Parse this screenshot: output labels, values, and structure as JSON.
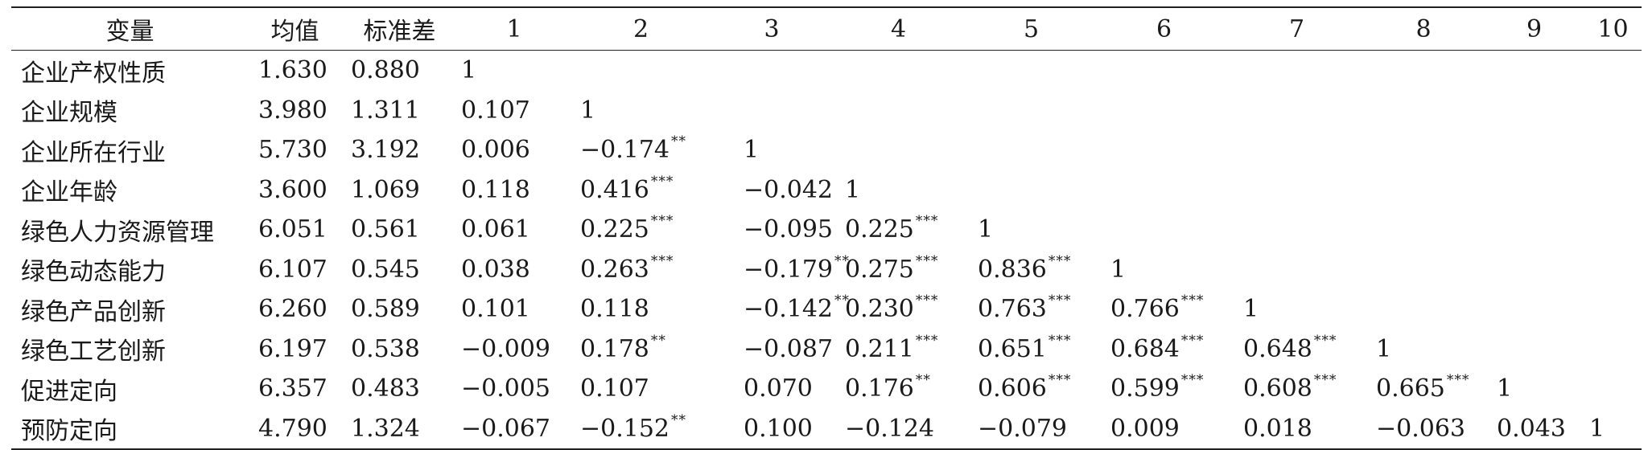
{
  "table": {
    "headers": [
      "变量",
      "均值",
      "标准差",
      "1",
      "2",
      "3",
      "4",
      "5",
      "6",
      "7",
      "8",
      "9",
      "10"
    ],
    "rows": [
      {
        "name": "企业产权性质",
        "mean": "1.630",
        "sd": "0.880",
        "cells": [
          {
            "v": "1",
            "s": ""
          },
          {
            "v": "",
            "s": ""
          },
          {
            "v": "",
            "s": ""
          },
          {
            "v": "",
            "s": ""
          },
          {
            "v": "",
            "s": ""
          },
          {
            "v": "",
            "s": ""
          },
          {
            "v": "",
            "s": ""
          },
          {
            "v": "",
            "s": ""
          },
          {
            "v": "",
            "s": ""
          },
          {
            "v": "",
            "s": ""
          }
        ]
      },
      {
        "name": "企业规模",
        "mean": "3.980",
        "sd": "1.311",
        "cells": [
          {
            "v": "0.107",
            "s": ""
          },
          {
            "v": "1",
            "s": ""
          },
          {
            "v": "",
            "s": ""
          },
          {
            "v": "",
            "s": ""
          },
          {
            "v": "",
            "s": ""
          },
          {
            "v": "",
            "s": ""
          },
          {
            "v": "",
            "s": ""
          },
          {
            "v": "",
            "s": ""
          },
          {
            "v": "",
            "s": ""
          },
          {
            "v": "",
            "s": ""
          }
        ]
      },
      {
        "name": "企业所在行业",
        "mean": "5.730",
        "sd": "3.192",
        "cells": [
          {
            "v": "0.006",
            "s": ""
          },
          {
            "v": "−0.174",
            "s": "**"
          },
          {
            "v": "1",
            "s": ""
          },
          {
            "v": "",
            "s": ""
          },
          {
            "v": "",
            "s": ""
          },
          {
            "v": "",
            "s": ""
          },
          {
            "v": "",
            "s": ""
          },
          {
            "v": "",
            "s": ""
          },
          {
            "v": "",
            "s": ""
          },
          {
            "v": "",
            "s": ""
          }
        ]
      },
      {
        "name": "企业年龄",
        "mean": "3.600",
        "sd": "1.069",
        "cells": [
          {
            "v": "0.118",
            "s": ""
          },
          {
            "v": "0.416",
            "s": "***"
          },
          {
            "v": "−0.042",
            "s": ""
          },
          {
            "v": "1",
            "s": ""
          },
          {
            "v": "",
            "s": ""
          },
          {
            "v": "",
            "s": ""
          },
          {
            "v": "",
            "s": ""
          },
          {
            "v": "",
            "s": ""
          },
          {
            "v": "",
            "s": ""
          },
          {
            "v": "",
            "s": ""
          }
        ]
      },
      {
        "name": "绿色人力资源管理",
        "mean": "6.051",
        "sd": "0.561",
        "cells": [
          {
            "v": "0.061",
            "s": ""
          },
          {
            "v": "0.225",
            "s": "***"
          },
          {
            "v": "−0.095",
            "s": ""
          },
          {
            "v": "0.225",
            "s": "***"
          },
          {
            "v": "1",
            "s": ""
          },
          {
            "v": "",
            "s": ""
          },
          {
            "v": "",
            "s": ""
          },
          {
            "v": "",
            "s": ""
          },
          {
            "v": "",
            "s": ""
          },
          {
            "v": "",
            "s": ""
          }
        ]
      },
      {
        "name": "绿色动态能力",
        "mean": "6.107",
        "sd": "0.545",
        "cells": [
          {
            "v": "0.038",
            "s": ""
          },
          {
            "v": "0.263",
            "s": "***"
          },
          {
            "v": "−0.179",
            "s": "**"
          },
          {
            "v": "0.275",
            "s": "***"
          },
          {
            "v": "0.836",
            "s": "***"
          },
          {
            "v": "1",
            "s": ""
          },
          {
            "v": "",
            "s": ""
          },
          {
            "v": "",
            "s": ""
          },
          {
            "v": "",
            "s": ""
          },
          {
            "v": "",
            "s": ""
          }
        ]
      },
      {
        "name": "绿色产品创新",
        "mean": "6.260",
        "sd": "0.589",
        "cells": [
          {
            "v": "0.101",
            "s": ""
          },
          {
            "v": "0.118",
            "s": ""
          },
          {
            "v": "−0.142",
            "s": "**"
          },
          {
            "v": "0.230",
            "s": "***"
          },
          {
            "v": "0.763",
            "s": "***"
          },
          {
            "v": "0.766",
            "s": "***"
          },
          {
            "v": "1",
            "s": ""
          },
          {
            "v": "",
            "s": ""
          },
          {
            "v": "",
            "s": ""
          },
          {
            "v": "",
            "s": ""
          }
        ]
      },
      {
        "name": "绿色工艺创新",
        "mean": "6.197",
        "sd": "0.538",
        "cells": [
          {
            "v": "−0.009",
            "s": ""
          },
          {
            "v": "0.178",
            "s": "**"
          },
          {
            "v": "−0.087",
            "s": ""
          },
          {
            "v": "0.211",
            "s": "***"
          },
          {
            "v": "0.651",
            "s": "***"
          },
          {
            "v": "0.684",
            "s": "***"
          },
          {
            "v": "0.648",
            "s": "***"
          },
          {
            "v": "1",
            "s": ""
          },
          {
            "v": "",
            "s": ""
          },
          {
            "v": "",
            "s": ""
          }
        ]
      },
      {
        "name": "促进定向",
        "mean": "6.357",
        "sd": "0.483",
        "cells": [
          {
            "v": "−0.005",
            "s": ""
          },
          {
            "v": "0.107",
            "s": ""
          },
          {
            "v": "0.070",
            "s": ""
          },
          {
            "v": "0.176",
            "s": "**"
          },
          {
            "v": "0.606",
            "s": "***"
          },
          {
            "v": "0.599",
            "s": "***"
          },
          {
            "v": "0.608",
            "s": "***"
          },
          {
            "v": "0.665",
            "s": "***"
          },
          {
            "v": "1",
            "s": ""
          },
          {
            "v": "",
            "s": ""
          }
        ]
      },
      {
        "name": "预防定向",
        "mean": "4.790",
        "sd": "1.324",
        "cells": [
          {
            "v": "−0.067",
            "s": ""
          },
          {
            "v": "−0.152",
            "s": "**"
          },
          {
            "v": "0.100",
            "s": ""
          },
          {
            "v": "−0.124",
            "s": ""
          },
          {
            "v": "−0.079",
            "s": ""
          },
          {
            "v": "0.009",
            "s": ""
          },
          {
            "v": "0.018",
            "s": ""
          },
          {
            "v": "−0.063",
            "s": ""
          },
          {
            "v": "0.043",
            "s": ""
          },
          {
            "v": "1",
            "s": ""
          }
        ]
      }
    ]
  }
}
